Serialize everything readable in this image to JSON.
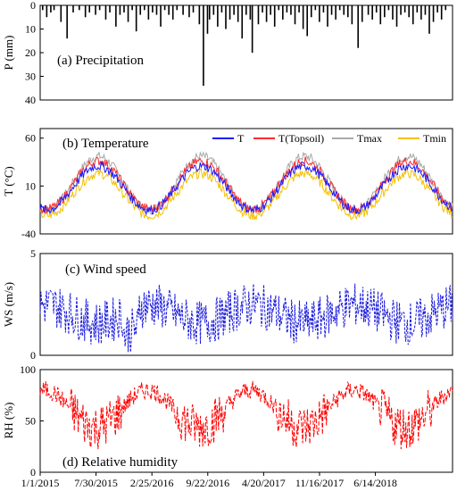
{
  "chart_data": [
    {
      "type": "bar",
      "title": "(a) Precipitation",
      "ylabel": "P (mm)",
      "ylim": [
        0,
        40
      ],
      "y_inverted": true,
      "yticks": [
        0,
        10,
        20,
        30,
        40
      ],
      "grid": false,
      "series": [
        {
          "name": "P",
          "values": [
            [
              0.0,
              2
            ],
            [
              0.01,
              5
            ],
            [
              0.02,
              3
            ],
            [
              0.028,
              2
            ],
            [
              0.045,
              7
            ],
            [
              0.06,
              14
            ],
            [
              0.075,
              3
            ],
            [
              0.09,
              2
            ],
            [
              0.105,
              5
            ],
            [
              0.115,
              3
            ],
            [
              0.13,
              4
            ],
            [
              0.14,
              2
            ],
            [
              0.155,
              6
            ],
            [
              0.165,
              3
            ],
            [
              0.18,
              9
            ],
            [
              0.19,
              4
            ],
            [
              0.2,
              3
            ],
            [
              0.21,
              7
            ],
            [
              0.22,
              2
            ],
            [
              0.23,
              11
            ],
            [
              0.24,
              4
            ],
            [
              0.25,
              2
            ],
            [
              0.26,
              6
            ],
            [
              0.27,
              3
            ],
            [
              0.28,
              4
            ],
            [
              0.29,
              9
            ],
            [
              0.3,
              2
            ],
            [
              0.31,
              4
            ],
            [
              0.32,
              6
            ],
            [
              0.33,
              2
            ],
            [
              0.345,
              4
            ],
            [
              0.36,
              5
            ],
            [
              0.37,
              3
            ],
            [
              0.385,
              8
            ],
            [
              0.395,
              34
            ],
            [
              0.405,
              12
            ],
            [
              0.41,
              6
            ],
            [
              0.42,
              4
            ],
            [
              0.43,
              9
            ],
            [
              0.44,
              3
            ],
            [
              0.45,
              10
            ],
            [
              0.46,
              6
            ],
            [
              0.47,
              4
            ],
            [
              0.48,
              7
            ],
            [
              0.49,
              14
            ],
            [
              0.5,
              4
            ],
            [
              0.51,
              6
            ],
            [
              0.515,
              20
            ],
            [
              0.53,
              8
            ],
            [
              0.54,
              3
            ],
            [
              0.55,
              7
            ],
            [
              0.56,
              4
            ],
            [
              0.57,
              9
            ],
            [
              0.58,
              2
            ],
            [
              0.59,
              6
            ],
            [
              0.6,
              3
            ],
            [
              0.61,
              4
            ],
            [
              0.62,
              8
            ],
            [
              0.63,
              3
            ],
            [
              0.64,
              10
            ],
            [
              0.65,
              13
            ],
            [
              0.66,
              5
            ],
            [
              0.67,
              2
            ],
            [
              0.68,
              7
            ],
            [
              0.69,
              3
            ],
            [
              0.7,
              9
            ],
            [
              0.71,
              4
            ],
            [
              0.72,
              6
            ],
            [
              0.73,
              2
            ],
            [
              0.74,
              4
            ],
            [
              0.75,
              5
            ],
            [
              0.76,
              8
            ],
            [
              0.775,
              18
            ],
            [
              0.785,
              7
            ],
            [
              0.8,
              4
            ],
            [
              0.81,
              6
            ],
            [
              0.82,
              3
            ],
            [
              0.83,
              8
            ],
            [
              0.84,
              5
            ],
            [
              0.85,
              2
            ],
            [
              0.86,
              6
            ],
            [
              0.87,
              9
            ],
            [
              0.88,
              4
            ],
            [
              0.89,
              3
            ],
            [
              0.9,
              5
            ],
            [
              0.91,
              8
            ],
            [
              0.92,
              3
            ],
            [
              0.93,
              6
            ],
            [
              0.94,
              4
            ],
            [
              0.95,
              12
            ],
            [
              0.96,
              7
            ],
            [
              0.97,
              3
            ],
            [
              0.98,
              6
            ],
            [
              0.99,
              2
            ]
          ]
        }
      ]
    },
    {
      "type": "line",
      "title": "(b) Temperature",
      "ylabel": "T (°C)",
      "ylim": [
        -40,
        70
      ],
      "yticks": [
        -40,
        10,
        60
      ],
      "grid": false,
      "legend_position": "top-right",
      "cycles": 4,
      "series": [
        {
          "name": "T",
          "color": "#1a1aff",
          "mean": 8,
          "amplitude": 23
        },
        {
          "name": "T(Topsoil)",
          "color": "#ff2a2a",
          "mean": 11,
          "amplitude": 25
        },
        {
          "name": "Tmax",
          "color": "#a9a9a9",
          "mean": 13,
          "amplitude": 28
        },
        {
          "name": "Tmin",
          "color": "#f5c000",
          "mean": 1,
          "amplitude": 22
        }
      ]
    },
    {
      "type": "line",
      "title": "(c) Wind speed",
      "ylabel": "WS (m/s)",
      "ylim": [
        0,
        5
      ],
      "yticks": [
        0,
        5
      ],
      "grid": false,
      "series": [
        {
          "name": "WS",
          "color": "#1a1adf",
          "mean": 1.7,
          "range": [
            0.1,
            4.2
          ]
        }
      ]
    },
    {
      "type": "line",
      "title": "(d) Relative humidity",
      "ylabel": "RH (%)",
      "ylim": [
        0,
        100
      ],
      "yticks": [
        0,
        50,
        100
      ],
      "grid": false,
      "series": [
        {
          "name": "RH",
          "color": "#ff0000",
          "mean": 62,
          "range": [
            20,
            95
          ]
        }
      ]
    }
  ],
  "x_axis": {
    "type": "date",
    "range": [
      "1/1/2015",
      "3/31/2019"
    ],
    "ticks": [
      "1/1/2015",
      "7/30/2015",
      "2/25/2016",
      "9/22/2016",
      "4/20/2017",
      "11/16/2017",
      "6/14/2018"
    ]
  }
}
